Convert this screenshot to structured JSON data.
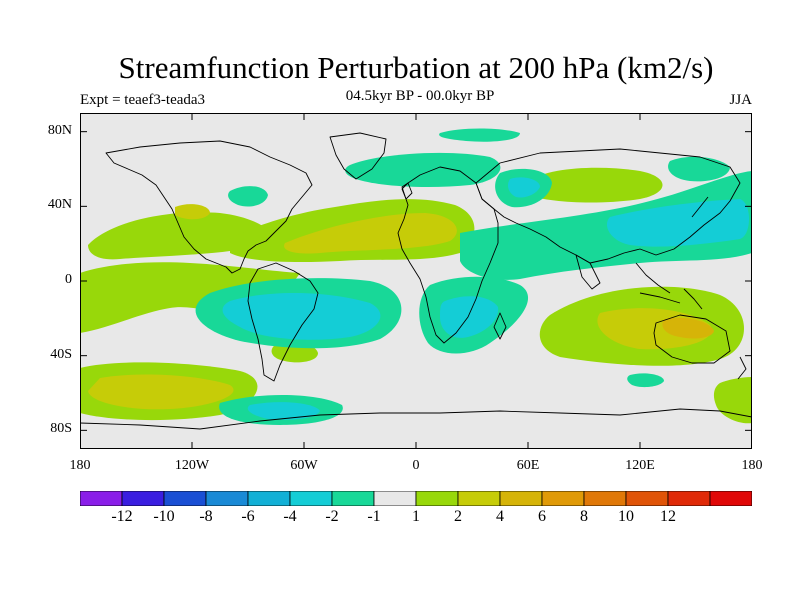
{
  "title": "Streamfunction Perturbation at 200 hPa (km2/s)",
  "subtitle_left": "Expt = teaef3-teada3",
  "subtitle_center": "04.5kyr BP - 00.0kyr BP",
  "subtitle_right": "JJA",
  "axes": {
    "lat_ticks": [
      {
        "label": "80N",
        "lat": 80
      },
      {
        "label": "40N",
        "lat": 40
      },
      {
        "label": "0",
        "lat": 0
      },
      {
        "label": "40S",
        "lat": -40
      },
      {
        "label": "80S",
        "lat": -80
      }
    ],
    "lon_ticks": [
      {
        "label": "180",
        "lon": -180
      },
      {
        "label": "120W",
        "lon": -120
      },
      {
        "label": "60W",
        "lon": -60
      },
      {
        "label": "0",
        "lon": 0
      },
      {
        "label": "60E",
        "lon": 60
      },
      {
        "label": "120E",
        "lon": 120
      },
      {
        "label": "180",
        "lon": 180
      }
    ],
    "lon_range": [
      -180,
      180
    ],
    "lat_range": [
      -90,
      90
    ]
  },
  "colorbar": {
    "colors": [
      "#8a1ee8",
      "#3a1ee0",
      "#1a4fd4",
      "#1a8ad6",
      "#12b0d6",
      "#14cdd6",
      "#18d898",
      "#e8e8e8",
      "#98d80a",
      "#c6cc08",
      "#d6b408",
      "#e09a08",
      "#e07808",
      "#e05408",
      "#e02a08",
      "#e00808"
    ],
    "labels": [
      "-12",
      "-10",
      "-8",
      "-6",
      "-4",
      "-2",
      "-1",
      "1",
      "2",
      "4",
      "6",
      "8",
      "10",
      "12"
    ]
  },
  "field_colors": {
    "background": "#e8e8e8",
    "neg1": "#18d898",
    "neg2": "#14cdd6",
    "pos1": "#98d80a",
    "pos2": "#c6cc08",
    "pos3": "#d6b408"
  }
}
